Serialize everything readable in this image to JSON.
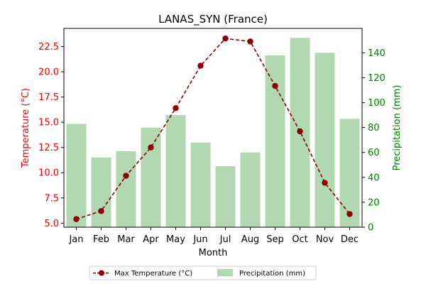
{
  "chart_data": {
    "type": "bar+line",
    "title": "LANAS_SYN (France)",
    "xlabel": "Month",
    "categories": [
      "Jan",
      "Feb",
      "Mar",
      "Apr",
      "May",
      "Jun",
      "Jul",
      "Aug",
      "Sep",
      "Oct",
      "Nov",
      "Dec"
    ],
    "series": [
      {
        "name": "Max Temperature (°C)",
        "type": "line",
        "axis": "left",
        "color": "#8b0000",
        "style": "dashed",
        "marker": "circle",
        "values": [
          5.4,
          6.2,
          9.7,
          12.5,
          16.4,
          20.6,
          23.3,
          23.0,
          18.6,
          14.1,
          9.0,
          5.9
        ]
      },
      {
        "name": "Precipitation (mm)",
        "type": "bar",
        "axis": "right",
        "color": "#b2d8b2",
        "values": [
          83,
          56,
          61,
          80,
          90,
          68,
          49,
          60,
          138,
          152,
          140,
          87
        ]
      }
    ],
    "y_left": {
      "label": "Temperature (°C)",
      "color": "#ff0000",
      "ylim": [
        4.6,
        24.3
      ],
      "ticks": [
        "5.0",
        "7.5",
        "10.0",
        "12.5",
        "15.0",
        "17.5",
        "20.0",
        "22.5"
      ],
      "tick_values": [
        5.0,
        7.5,
        10.0,
        12.5,
        15.0,
        17.5,
        20.0,
        22.5
      ]
    },
    "y_right": {
      "label": "Precipitation (mm)",
      "color": "#008000",
      "ylim": [
        0,
        159.6
      ],
      "ticks": [
        "0",
        "20",
        "40",
        "60",
        "80",
        "100",
        "120",
        "140"
      ],
      "tick_values": [
        0,
        20,
        40,
        60,
        80,
        100,
        120,
        140
      ]
    },
    "grid": false,
    "legend_position": "bottom-center"
  }
}
